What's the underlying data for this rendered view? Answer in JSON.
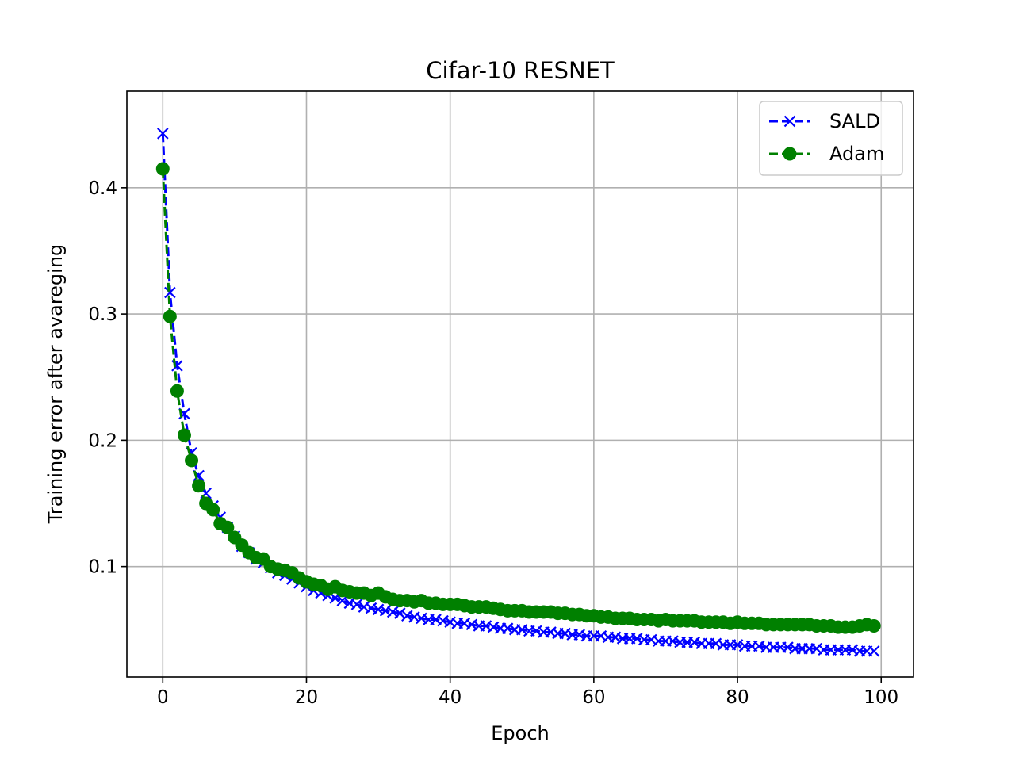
{
  "chart_data": {
    "type": "line",
    "title": "Cifar-10 RESNET",
    "xlabel": "Epoch",
    "ylabel": "Training error after avareging",
    "xlim": [
      -5,
      104.5
    ],
    "ylim": [
      0.0125,
      0.4765
    ],
    "xticks": [
      0,
      20,
      40,
      60,
      80,
      100
    ],
    "xtick_labels": [
      "0",
      "20",
      "40",
      "60",
      "80",
      "100"
    ],
    "yticks": [
      0.1,
      0.2,
      0.3,
      0.4
    ],
    "ytick_labels": [
      "0.1",
      "0.2",
      "0.3",
      "0.4"
    ],
    "grid": true,
    "legend_position": "upper right",
    "series": [
      {
        "name": "SALD",
        "color": "#0000ff",
        "linestyle": "dashed",
        "marker": "x",
        "x": [
          0,
          1,
          2,
          3,
          4,
          5,
          6,
          7,
          8,
          9,
          10,
          11,
          12,
          13,
          14,
          15,
          16,
          17,
          18,
          19,
          20,
          21,
          22,
          23,
          24,
          25,
          26,
          27,
          28,
          29,
          30,
          31,
          32,
          33,
          34,
          35,
          36,
          37,
          38,
          39,
          40,
          41,
          42,
          43,
          44,
          45,
          46,
          47,
          48,
          49,
          50,
          51,
          52,
          53,
          54,
          55,
          56,
          57,
          58,
          59,
          60,
          61,
          62,
          63,
          64,
          65,
          66,
          67,
          68,
          69,
          70,
          71,
          72,
          73,
          74,
          75,
          76,
          77,
          78,
          79,
          80,
          81,
          82,
          83,
          84,
          85,
          86,
          87,
          88,
          89,
          90,
          91,
          92,
          93,
          94,
          95,
          96,
          97,
          98,
          99
        ],
        "y": [
          0.443,
          0.317,
          0.259,
          0.221,
          0.19,
          0.172,
          0.158,
          0.148,
          0.139,
          0.131,
          0.124,
          0.116,
          0.111,
          0.106,
          0.103,
          0.099,
          0.095,
          0.093,
          0.09,
          0.087,
          0.084,
          0.081,
          0.079,
          0.077,
          0.075,
          0.073,
          0.071,
          0.07,
          0.068,
          0.067,
          0.066,
          0.065,
          0.064,
          0.063,
          0.061,
          0.06,
          0.059,
          0.058,
          0.058,
          0.057,
          0.056,
          0.055,
          0.055,
          0.054,
          0.053,
          0.053,
          0.052,
          0.051,
          0.051,
          0.05,
          0.05,
          0.049,
          0.049,
          0.048,
          0.048,
          0.047,
          0.047,
          0.046,
          0.046,
          0.045,
          0.045,
          0.045,
          0.044,
          0.044,
          0.043,
          0.043,
          0.043,
          0.042,
          0.042,
          0.041,
          0.041,
          0.041,
          0.04,
          0.04,
          0.04,
          0.039,
          0.039,
          0.039,
          0.038,
          0.038,
          0.038,
          0.037,
          0.037,
          0.037,
          0.036,
          0.036,
          0.036,
          0.036,
          0.035,
          0.035,
          0.035,
          0.035,
          0.034,
          0.034,
          0.034,
          0.034,
          0.034,
          0.033,
          0.033,
          0.033
        ]
      },
      {
        "name": "Adam",
        "color": "#008000",
        "linestyle": "dashed",
        "marker": "o",
        "x": [
          0,
          1,
          2,
          3,
          4,
          5,
          6,
          7,
          8,
          9,
          10,
          11,
          12,
          13,
          14,
          15,
          16,
          17,
          18,
          19,
          20,
          21,
          22,
          23,
          24,
          25,
          26,
          27,
          28,
          29,
          30,
          31,
          32,
          33,
          34,
          35,
          36,
          37,
          38,
          39,
          40,
          41,
          42,
          43,
          44,
          45,
          46,
          47,
          48,
          49,
          50,
          51,
          52,
          53,
          54,
          55,
          56,
          57,
          58,
          59,
          60,
          61,
          62,
          63,
          64,
          65,
          66,
          67,
          68,
          69,
          70,
          71,
          72,
          73,
          74,
          75,
          76,
          77,
          78,
          79,
          80,
          81,
          82,
          83,
          84,
          85,
          86,
          87,
          88,
          89,
          90,
          91,
          92,
          93,
          94,
          95,
          96,
          97,
          98,
          99
        ],
        "y": [
          0.415,
          0.298,
          0.239,
          0.204,
          0.184,
          0.164,
          0.15,
          0.145,
          0.134,
          0.131,
          0.123,
          0.117,
          0.111,
          0.107,
          0.106,
          0.1,
          0.098,
          0.097,
          0.095,
          0.091,
          0.088,
          0.086,
          0.085,
          0.082,
          0.084,
          0.081,
          0.08,
          0.079,
          0.079,
          0.077,
          0.079,
          0.076,
          0.074,
          0.073,
          0.073,
          0.072,
          0.073,
          0.071,
          0.071,
          0.07,
          0.07,
          0.07,
          0.069,
          0.068,
          0.068,
          0.068,
          0.067,
          0.066,
          0.065,
          0.065,
          0.065,
          0.064,
          0.064,
          0.064,
          0.064,
          0.063,
          0.063,
          0.062,
          0.062,
          0.061,
          0.061,
          0.06,
          0.06,
          0.059,
          0.059,
          0.059,
          0.058,
          0.058,
          0.058,
          0.057,
          0.058,
          0.057,
          0.057,
          0.057,
          0.057,
          0.056,
          0.056,
          0.056,
          0.056,
          0.055,
          0.056,
          0.055,
          0.055,
          0.055,
          0.054,
          0.054,
          0.054,
          0.054,
          0.054,
          0.054,
          0.054,
          0.053,
          0.053,
          0.053,
          0.052,
          0.052,
          0.052,
          0.053,
          0.054,
          0.053
        ]
      }
    ]
  }
}
